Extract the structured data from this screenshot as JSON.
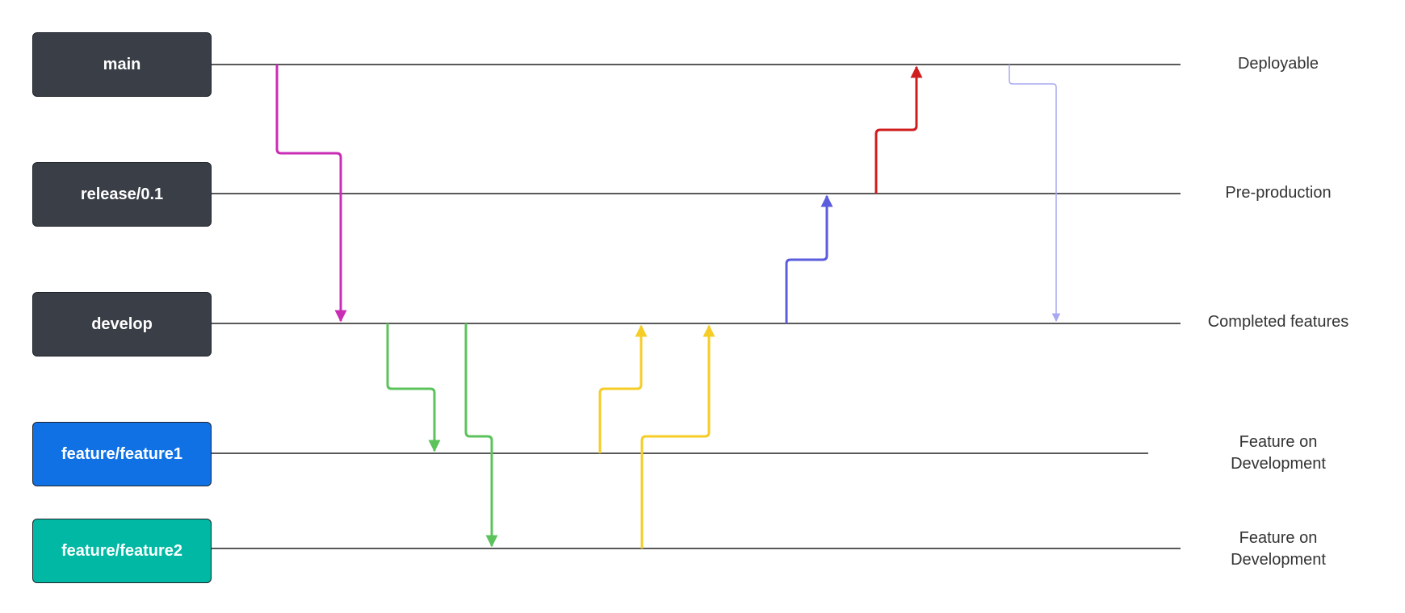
{
  "branches": [
    {
      "name": "main",
      "color": "#3a3f47",
      "stage": "Deployable"
    },
    {
      "name": "release/0.1",
      "color": "#3a3f47",
      "stage": "Pre-production"
    },
    {
      "name": "develop",
      "color": "#3a3f47",
      "stage": "Completed features"
    },
    {
      "name": "feature/feature1",
      "color": "#1071e5",
      "stage": "Feature on\nDevelopment"
    },
    {
      "name": "feature/feature2",
      "color": "#00b8a3",
      "stage": "Feature on\nDevelopment"
    }
  ],
  "arrow_colors": {
    "magenta": "#c92db4",
    "green": "#5cc35c",
    "yellow": "#f5cd26",
    "blue": "#5b5ddc",
    "red": "#d01c1c",
    "lavender": "#a7a8f0"
  }
}
